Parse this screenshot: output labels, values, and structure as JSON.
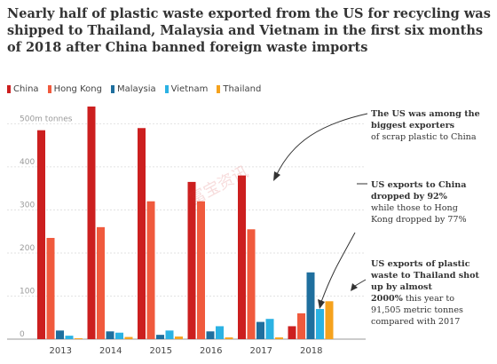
{
  "title": "Nearly half of plastic waste exported from the US for recycling was shipped to Thailand, Malaysia and Vietnam in the first six months of 2018 after China banned foreign waste imports",
  "watermark": "富宝资讯",
  "chart_data": {
    "type": "bar",
    "categories": [
      "2013",
      "2014",
      "2015",
      "2016",
      "2017",
      "2018"
    ],
    "ylabel": "500m tonnes",
    "ylim": [
      0,
      540
    ],
    "yticks": [
      "500m tonnes",
      "400",
      "300",
      "200",
      "100",
      "0"
    ],
    "ytick_values": [
      500,
      400,
      300,
      200,
      100,
      0
    ],
    "grid": true,
    "legend_placement": "top-left",
    "series": [
      {
        "name": "China",
        "color": "#cc1f1f",
        "values": [
          485,
          540,
          490,
          365,
          380,
          30
        ]
      },
      {
        "name": "Hong Kong",
        "color": "#f05a3d",
        "values": [
          235,
          260,
          320,
          320,
          255,
          60
        ]
      },
      {
        "name": "Malaysia",
        "color": "#1f6f9e",
        "values": [
          20,
          18,
          10,
          18,
          40,
          155
        ]
      },
      {
        "name": "Vietnam",
        "color": "#2bb2e3",
        "values": [
          8,
          15,
          20,
          30,
          47,
          70
        ]
      },
      {
        "name": "Thailand",
        "color": "#f5a21d",
        "values": [
          2,
          5,
          6,
          4,
          4,
          88
        ]
      }
    ]
  },
  "annotations": [
    {
      "bold": "The US was among the biggest exporters",
      "normal": "of scrap plastic to China"
    },
    {
      "bold": "US exports to China dropped by 92%",
      "normal": "while those to Hong Kong dropped by 77%"
    },
    {
      "bold": "US exports of plastic waste to Thailand shot up by almost",
      "mid_bold": "2000%",
      "normal": "this year to 91,505 metric tonnes compared with 2017"
    }
  ]
}
